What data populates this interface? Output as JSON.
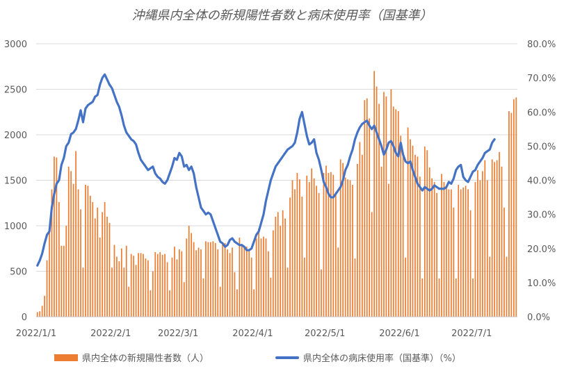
{
  "chart_data": {
    "type": "bar",
    "title": "沖縄県内全体の新規陽性者数と病床使用率（国基準）",
    "xlabel": "",
    "ylabel": "",
    "x_range": [
      "2022/1/1",
      "2022/7/4"
    ],
    "x_ticks": [
      "2022/1/1",
      "2022/2/1",
      "2022/3/1",
      "2022/4/1",
      "2022/5/1",
      "2022/6/1",
      "2022/7/1"
    ],
    "y_left": {
      "ylim": [
        0,
        3000
      ],
      "ticks": [
        "0",
        "500",
        "1000",
        "1500",
        "2000",
        "2500",
        "3000"
      ]
    },
    "y_right": {
      "ylim": [
        0,
        80
      ],
      "ticks": [
        "0.0%",
        "10.0%",
        "20.0%",
        "30.0%",
        "40.0%",
        "50.0%",
        "60.0%",
        "70.0%",
        "80.0%"
      ]
    },
    "grid": true,
    "legend_position": "bottom",
    "series": [
      {
        "name": "県内全体の新規陽性者数（人）",
        "type": "bar",
        "axis": "left",
        "color": "#ED7D31",
        "values": [
          50,
          60,
          120,
          230,
          620,
          980,
          1400,
          1760,
          1750,
          1260,
          780,
          780,
          1000,
          1650,
          1600,
          1460,
          1820,
          1400,
          1180,
          540,
          1450,
          1440,
          1330,
          1260,
          1080,
          1200,
          870,
          1150,
          1260,
          1100,
          1030,
          540,
          790,
          660,
          610,
          750,
          540,
          780,
          330,
          690,
          670,
          570,
          700,
          700,
          690,
          640,
          620,
          290,
          500,
          710,
          690,
          710,
          680,
          690,
          600,
          290,
          650,
          770,
          630,
          740,
          720,
          380,
          860,
          1000,
          920,
          820,
          730,
          760,
          740,
          420,
          830,
          820,
          820,
          830,
          810,
          740,
          330,
          810,
          810,
          740,
          700,
          760,
          490,
          300,
          870,
          800,
          760,
          770,
          740,
          650,
          300,
          860,
          970,
          860,
          880,
          860,
          720,
          430,
          950,
          1100,
          1150,
          1000,
          1170,
          1080,
          540,
          1310,
          1500,
          1400,
          1580,
          1510,
          1320,
          650,
          1550,
          1480,
          1630,
          1520,
          1440,
          1360,
          520,
          1580,
          1660,
          1580,
          1590,
          1560,
          1370,
          760,
          1730,
          1690,
          1530,
          1510,
          1500,
          1450,
          640,
          1680,
          1920,
          1780,
          2380,
          2400,
          2180,
          1150,
          2700,
          2530,
          2340,
          1650,
          2470,
          2420,
          1460,
          2500,
          2310,
          2280,
          2260,
          1990,
          1810,
          650,
          2080,
          1950,
          1880,
          1780,
          1760,
          1540,
          420,
          1870,
          1830,
          1640,
          1520,
          1480,
          1360,
          420,
          1570,
          1480,
          1420,
          1400,
          1400,
          1200,
          420,
          1450,
          1400,
          1420,
          1440,
          1400,
          1170,
          420,
          1480,
          1610,
          1500,
          1600,
          1720,
          1500,
          660,
          1730,
          1700,
          1720,
          1810,
          1650,
          1200,
          660,
          2260,
          2240,
          2390,
          2410
        ]
      },
      {
        "name": "県内全体の病床使用率（国基準）（%）",
        "type": "line",
        "axis": "right",
        "color": "#4472C4",
        "values": [
          15.0,
          16.5,
          18.5,
          21.5,
          24,
          25,
          32,
          36,
          39,
          40,
          44.5,
          46.5,
          50,
          51,
          53.5,
          54,
          55,
          57.5,
          60.5,
          57,
          61,
          62,
          62.5,
          63,
          64.5,
          65,
          68,
          70,
          71,
          69.5,
          68,
          67,
          65,
          63,
          61.5,
          59,
          56,
          54,
          53,
          52,
          51.5,
          50.5,
          48,
          46,
          45,
          44,
          43,
          43.5,
          44,
          42,
          41,
          40.5,
          39.5,
          39,
          40,
          42,
          44,
          46.5,
          46,
          48,
          47,
          44,
          44.5,
          43,
          44,
          42,
          38,
          35,
          32,
          31,
          30,
          30.5,
          30,
          28,
          26,
          24,
          22,
          21.5,
          20.5,
          21,
          22.5,
          23,
          22,
          21.5,
          21,
          21,
          20.5,
          19.5,
          19.5,
          20,
          22,
          24,
          25,
          27.5,
          30,
          34,
          37,
          40,
          42,
          44,
          45,
          46,
          47,
          48,
          49,
          49.5,
          50,
          51,
          54,
          58,
          60,
          56.5,
          53,
          50.5,
          51,
          52,
          48,
          46,
          43,
          39.5,
          38,
          36,
          35,
          35,
          36,
          37,
          38,
          40,
          43,
          44.5,
          47,
          49,
          52,
          54,
          55.5,
          56.5,
          57,
          57.5,
          56,
          55,
          56,
          54,
          52,
          50,
          47.5,
          49,
          51,
          51.5,
          50,
          48,
          47,
          51,
          47.5,
          45.5,
          45,
          45.5,
          43,
          41,
          39,
          38,
          37,
          38,
          37.5,
          37,
          37.5,
          38.5,
          38,
          37.5,
          37.5,
          37.5,
          38,
          39.5,
          39,
          40.5,
          43,
          44,
          44.5,
          41,
          40,
          39.5,
          41,
          42.5,
          43,
          44.5,
          45.5,
          46.5,
          48,
          48.5,
          49,
          51,
          52
        ]
      }
    ]
  }
}
